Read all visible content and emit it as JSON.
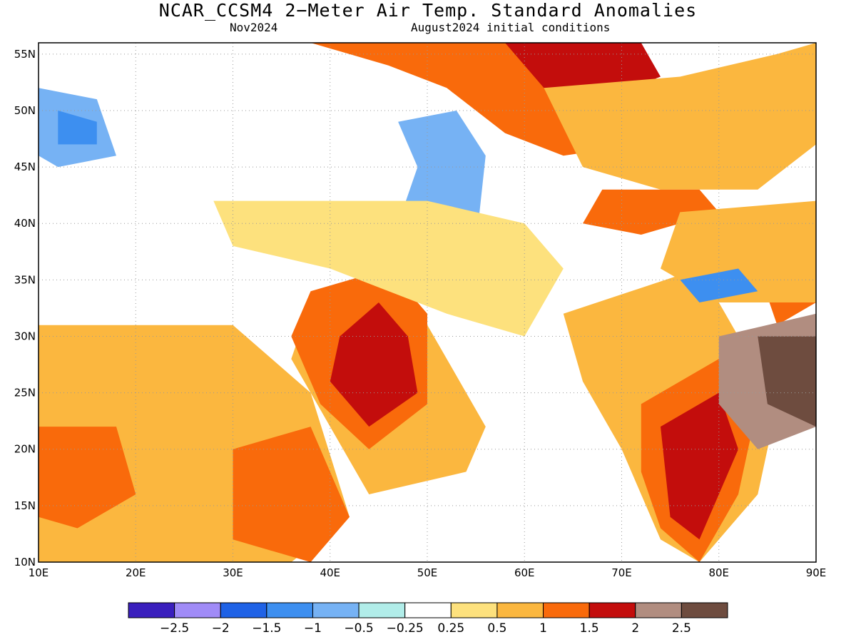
{
  "title": "NCAR_CCSM4 2−Meter Air Temp. Standard Anomalies",
  "subtitle_left": "Nov2024",
  "subtitle_right": "August2024 initial conditions",
  "map": {
    "lon_range": [
      10,
      90
    ],
    "lat_range": [
      10,
      56
    ],
    "lon_ticks": [
      "10E",
      "20E",
      "30E",
      "40E",
      "50E",
      "60E",
      "70E",
      "80E",
      "90E"
    ],
    "lon_tick_values": [
      10,
      20,
      30,
      40,
      50,
      60,
      70,
      80,
      90
    ],
    "lat_ticks": [
      "10N",
      "15N",
      "20N",
      "25N",
      "30N",
      "35N",
      "40N",
      "45N",
      "50N",
      "55N"
    ],
    "lat_tick_values": [
      10,
      15,
      20,
      25,
      30,
      35,
      40,
      45,
      50,
      55
    ],
    "grid": "dotted",
    "regions": [
      {
        "name": "russia-kazakhstan-north",
        "level": 1.5,
        "poly": [
          [
            38,
            56
          ],
          [
            62,
            56
          ],
          [
            70,
            54
          ],
          [
            76,
            52
          ],
          [
            72,
            47
          ],
          [
            64,
            46
          ],
          [
            58,
            48
          ],
          [
            52,
            52
          ],
          [
            46,
            54
          ]
        ]
      },
      {
        "name": "russia-core",
        "level": 2,
        "poly": [
          [
            58,
            56
          ],
          [
            72,
            56
          ],
          [
            74,
            53
          ],
          [
            68,
            51
          ],
          [
            62,
            52
          ]
        ]
      },
      {
        "name": "kazakhstan-east",
        "level": 1,
        "poly": [
          [
            62,
            52
          ],
          [
            76,
            53
          ],
          [
            86,
            55
          ],
          [
            90,
            56
          ],
          [
            90,
            47
          ],
          [
            84,
            43
          ],
          [
            74,
            43
          ],
          [
            66,
            45
          ]
        ]
      },
      {
        "name": "kyrgyz-core",
        "level": 1.5,
        "poly": [
          [
            68,
            43
          ],
          [
            78,
            43
          ],
          [
            80,
            41
          ],
          [
            72,
            39
          ],
          [
            66,
            40
          ]
        ]
      },
      {
        "name": "tibet-hot",
        "level": 1.5,
        "poly": [
          [
            84,
            36
          ],
          [
            90,
            38
          ],
          [
            90,
            33
          ],
          [
            86,
            31
          ]
        ]
      },
      {
        "name": "china-west",
        "level": 1,
        "poly": [
          [
            76,
            41
          ],
          [
            90,
            42
          ],
          [
            90,
            33
          ],
          [
            80,
            33
          ],
          [
            74,
            36
          ]
        ]
      },
      {
        "name": "arabia-warm",
        "level": 1,
        "poly": [
          [
            38,
            33
          ],
          [
            48,
            34
          ],
          [
            52,
            28
          ],
          [
            56,
            22
          ],
          [
            54,
            18
          ],
          [
            44,
            16
          ],
          [
            40,
            22
          ],
          [
            36,
            28
          ]
        ]
      },
      {
        "name": "arabia-hot",
        "level": 1.5,
        "poly": [
          [
            38,
            34
          ],
          [
            46,
            36
          ],
          [
            50,
            32
          ],
          [
            50,
            24
          ],
          [
            44,
            20
          ],
          [
            39,
            24
          ],
          [
            36,
            30
          ]
        ]
      },
      {
        "name": "arabia-core",
        "level": 2,
        "poly": [
          [
            41,
            30
          ],
          [
            45,
            33
          ],
          [
            48,
            30
          ],
          [
            49,
            25
          ],
          [
            44,
            22
          ],
          [
            40,
            26
          ]
        ]
      },
      {
        "name": "sahara-warm",
        "level": 1,
        "poly": [
          [
            10,
            31
          ],
          [
            30,
            31
          ],
          [
            38,
            25
          ],
          [
            42,
            14
          ],
          [
            36,
            10
          ],
          [
            10,
            10
          ]
        ]
      },
      {
        "name": "sahel-hot",
        "level": 1.5,
        "poly": [
          [
            10,
            22
          ],
          [
            18,
            22
          ],
          [
            20,
            16
          ],
          [
            14,
            13
          ],
          [
            10,
            14
          ]
        ]
      },
      {
        "name": "sudan-hot",
        "level": 1.5,
        "poly": [
          [
            30,
            20
          ],
          [
            38,
            22
          ],
          [
            42,
            14
          ],
          [
            38,
            10
          ],
          [
            30,
            12
          ]
        ]
      },
      {
        "name": "india-warm",
        "level": 1,
        "poly": [
          [
            64,
            32
          ],
          [
            78,
            36
          ],
          [
            82,
            30
          ],
          [
            86,
            24
          ],
          [
            84,
            16
          ],
          [
            78,
            10
          ],
          [
            74,
            12
          ],
          [
            70,
            20
          ],
          [
            66,
            26
          ]
        ]
      },
      {
        "name": "india-hot",
        "level": 1.5,
        "poly": [
          [
            72,
            24
          ],
          [
            80,
            28
          ],
          [
            84,
            24
          ],
          [
            82,
            16
          ],
          [
            78,
            10
          ],
          [
            74,
            13
          ],
          [
            72,
            18
          ]
        ]
      },
      {
        "name": "india-core",
        "level": 2,
        "poly": [
          [
            74,
            22
          ],
          [
            80,
            25
          ],
          [
            82,
            20
          ],
          [
            78,
            12
          ],
          [
            75,
            14
          ]
        ]
      },
      {
        "name": "bengal-warm",
        "level": 2.5,
        "poly": [
          [
            80,
            30
          ],
          [
            90,
            32
          ],
          [
            90,
            22
          ],
          [
            84,
            20
          ],
          [
            80,
            24
          ]
        ]
      },
      {
        "name": "bengal-core",
        "level": 3,
        "poly": [
          [
            84,
            30
          ],
          [
            90,
            30
          ],
          [
            90,
            22
          ],
          [
            85,
            24
          ]
        ]
      },
      {
        "name": "caspian-cold",
        "level": -1.5,
        "poly": [
          [
            48,
            48
          ],
          [
            52,
            49
          ],
          [
            54,
            46
          ],
          [
            53,
            40
          ],
          [
            51,
            38
          ],
          [
            49,
            40
          ],
          [
            50,
            45
          ]
        ]
      },
      {
        "name": "caspian-cool",
        "level": -0.5,
        "poly": [
          [
            47,
            49
          ],
          [
            53,
            50
          ],
          [
            56,
            46
          ],
          [
            55,
            38
          ],
          [
            50,
            36
          ],
          [
            47,
            40
          ],
          [
            49,
            45
          ]
        ]
      },
      {
        "name": "europe-cool",
        "level": -0.5,
        "poly": [
          [
            10,
            52
          ],
          [
            16,
            51
          ],
          [
            18,
            46
          ],
          [
            12,
            45
          ],
          [
            10,
            46
          ]
        ]
      },
      {
        "name": "europe-cold",
        "level": -1,
        "poly": [
          [
            12,
            50
          ],
          [
            16,
            49
          ],
          [
            16,
            47
          ],
          [
            12,
            47
          ]
        ]
      },
      {
        "name": "tibet-cool",
        "level": -1,
        "poly": [
          [
            76,
            35
          ],
          [
            82,
            36
          ],
          [
            84,
            34
          ],
          [
            78,
            33
          ]
        ]
      },
      {
        "name": "mid-east-warm",
        "level": 0.5,
        "poly": [
          [
            28,
            42
          ],
          [
            50,
            42
          ],
          [
            60,
            40
          ],
          [
            64,
            36
          ],
          [
            60,
            30
          ],
          [
            52,
            32
          ],
          [
            40,
            36
          ],
          [
            30,
            38
          ]
        ]
      }
    ]
  },
  "colorbar": {
    "colors": [
      "#3a1fbd",
      "#a08bf7",
      "#1f62e6",
      "#3d8ff0",
      "#76b2f4",
      "#b1ede9",
      "#ffffff",
      "#fde17d",
      "#fbb73f",
      "#f96a0b",
      "#c30d0c",
      "#b18d80",
      "#6e4c3f"
    ],
    "labels": [
      "−2.5",
      "−2",
      "−1.5",
      "−1",
      "−0.5",
      "−0.25",
      "0.25",
      "0.5",
      "1",
      "1.5",
      "2",
      "2.5"
    ],
    "label_values": [
      -2.5,
      -2,
      -1.5,
      -1,
      -0.5,
      -0.25,
      0.25,
      0.5,
      1,
      1.5,
      2,
      2.5
    ]
  }
}
